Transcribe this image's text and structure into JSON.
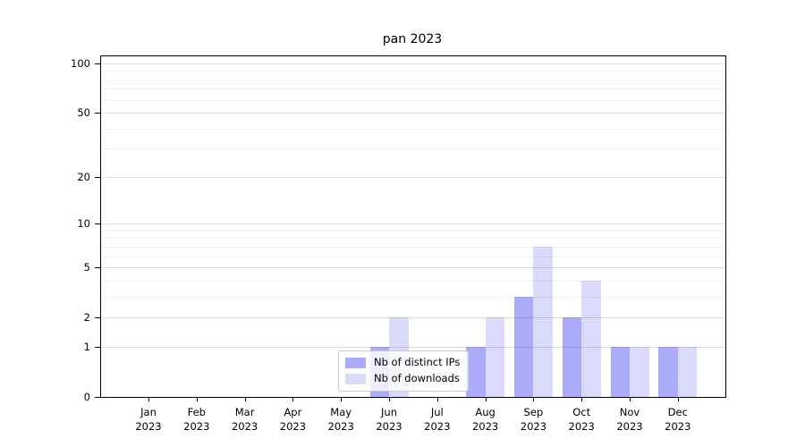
{
  "title": "pan 2023",
  "legend": {
    "entries": [
      {
        "label": "Nb of distinct IPs",
        "color": "#ababfa"
      },
      {
        "label": "Nb of downloads",
        "color": "#dadafa"
      }
    ]
  },
  "axis": {
    "y_major_ticks": [
      {
        "label": "0",
        "value": 0
      },
      {
        "label": "1",
        "value": 1
      },
      {
        "label": "2",
        "value": 2
      },
      {
        "label": "5",
        "value": 5
      },
      {
        "label": "10",
        "value": 10
      },
      {
        "label": "20",
        "value": 20
      },
      {
        "label": "50",
        "value": 50
      },
      {
        "label": "100",
        "value": 100
      }
    ],
    "y_minor_tick_values": [
      3,
      4,
      6,
      7,
      8,
      9,
      30,
      40,
      60,
      70,
      80,
      90
    ],
    "x_tick_labels": [
      "Jan\n2023",
      "Feb\n2023",
      "Mar\n2023",
      "Apr\n2023",
      "May\n2023",
      "Jun\n2023",
      "Jul\n2023",
      "Aug\n2023",
      "Sep\n2023",
      "Oct\n2023",
      "Nov\n2023",
      "Dec\n2023"
    ]
  },
  "chart_data": {
    "type": "bar",
    "title": "pan 2023",
    "xlabel": "",
    "ylabel": "",
    "categories": [
      "Jan 2023",
      "Feb 2023",
      "Mar 2023",
      "Apr 2023",
      "May 2023",
      "Jun 2023",
      "Jul 2023",
      "Aug 2023",
      "Sep 2023",
      "Oct 2023",
      "Nov 2023",
      "Dec 2023"
    ],
    "series": [
      {
        "name": "Nb of distinct IPs",
        "color": "#ababfa",
        "values": [
          0,
          0,
          0,
          0,
          0,
          1,
          0,
          1,
          3,
          2,
          1,
          1
        ]
      },
      {
        "name": "Nb of downloads",
        "color": "#dadafa",
        "values": [
          0,
          0,
          0,
          0,
          0,
          2,
          0,
          2,
          7,
          4,
          1,
          1
        ]
      }
    ],
    "yscale": "log1p",
    "ylim": [
      0,
      100
    ],
    "y_ticks": [
      0,
      1,
      2,
      5,
      10,
      20,
      50,
      100
    ],
    "grid": true,
    "grid_on_top_of_bars": true,
    "legend_position": "lower-center-inside"
  }
}
